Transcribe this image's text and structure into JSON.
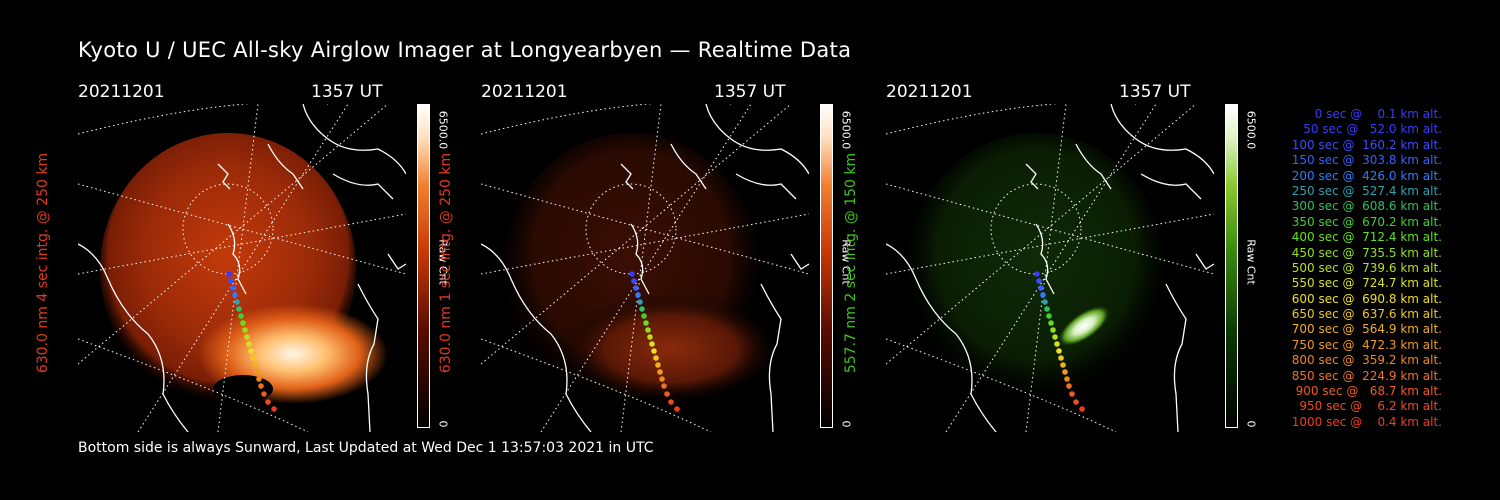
{
  "title": "Kyoto U / UEC All-sky Airglow Imager at Longyearbyen — Realtime Data",
  "footer": "Bottom side is always Sunward, Last Updated at Wed Dec  1 13:57:03 2021 in UTC",
  "panels": [
    {
      "date": "20211201",
      "time": "1357 UT",
      "ylabel": "630.0 nm 4 sec intg. @ 250 km",
      "label_color": "#e03a1e",
      "cb_max": "6500.0",
      "cb_min": "0",
      "cb_unit": "Raw Cnt",
      "colormap": "red"
    },
    {
      "date": "20211201",
      "time": "1357 UT",
      "ylabel": "630.0 nm 1 sec intg. @ 250 km",
      "label_color": "#e03a1e",
      "cb_max": "6500.0",
      "cb_min": "0",
      "cb_unit": "Raw Cnt",
      "colormap": "red"
    },
    {
      "date": "20211201",
      "time": "1357 UT",
      "ylabel": "557.7 nm 2 sec intg. @ 150 km",
      "label_color": "#3ec41a",
      "cb_max": "6500.0",
      "cb_min": "0",
      "cb_unit": "Raw Cnt",
      "colormap": "green"
    }
  ],
  "legend": [
    {
      "text": "0 sec @    0.1 km alt.",
      "color": "#3a3aff"
    },
    {
      "text": "50 sec @   52.0 km alt.",
      "color": "#3a3aff"
    },
    {
      "text": "100 sec @  160.2 km alt.",
      "color": "#3a4cff"
    },
    {
      "text": "150 sec @  303.8 km alt.",
      "color": "#3a60ff"
    },
    {
      "text": "200 sec @  426.0 km alt.",
      "color": "#2f7bff"
    },
    {
      "text": "250 sec @  527.4 km alt.",
      "color": "#2fa0b0"
    },
    {
      "text": "300 sec @  608.6 km alt.",
      "color": "#2fc060"
    },
    {
      "text": "350 sec @  670.2 km alt.",
      "color": "#40d030"
    },
    {
      "text": "400 sec @  712.4 km alt.",
      "color": "#60e020"
    },
    {
      "text": "450 sec @  735.5 km alt.",
      "color": "#90e020"
    },
    {
      "text": "500 sec @  739.6 km alt.",
      "color": "#b8e020"
    },
    {
      "text": "550 sec @  724.7 km alt.",
      "color": "#d8e020"
    },
    {
      "text": "600 sec @  690.8 km alt.",
      "color": "#f0e020"
    },
    {
      "text": "650 sec @  637.6 km alt.",
      "color": "#f0c820"
    },
    {
      "text": "700 sec @  564.9 km alt.",
      "color": "#f0b020"
    },
    {
      "text": "750 sec @  472.3 km alt.",
      "color": "#f09a20"
    },
    {
      "text": "800 sec @  359.2 km alt.",
      "color": "#f08620"
    },
    {
      "text": "850 sec @  224.9 km alt.",
      "color": "#f07020"
    },
    {
      "text": "900 sec @   68.7 km alt.",
      "color": "#f05a20"
    },
    {
      "text": "950 sec @    6.2 km alt.",
      "color": "#f04a20"
    },
    {
      "text": "1000 sec @    0.4 km alt.",
      "color": "#f03a20"
    }
  ]
}
